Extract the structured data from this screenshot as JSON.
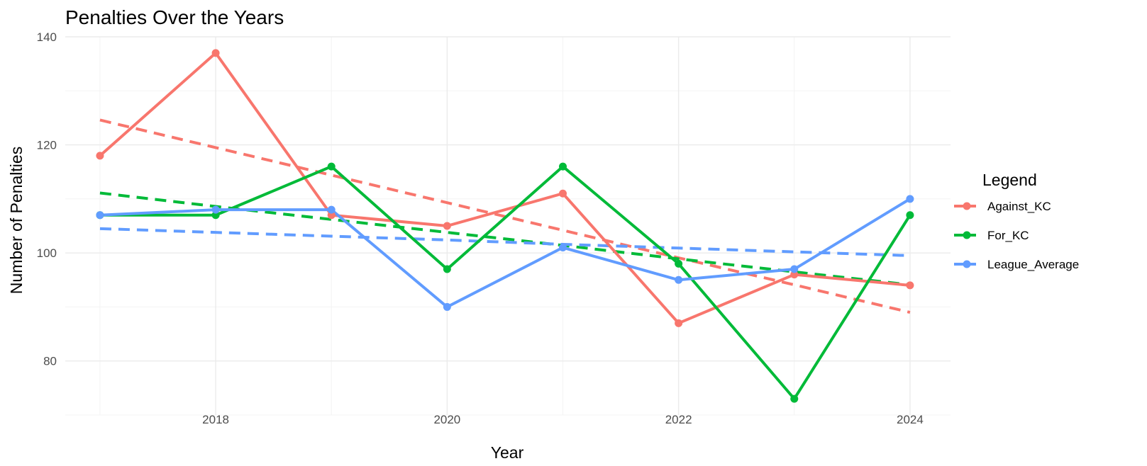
{
  "chart_data": {
    "type": "line",
    "title": "Penalties Over the Years",
    "xlabel": "Year",
    "ylabel": "Number of Penalties",
    "x": [
      2017,
      2018,
      2019,
      2020,
      2021,
      2022,
      2023,
      2024
    ],
    "xlim": [
      2016.7,
      2024.35
    ],
    "ylim": [
      70,
      140
    ],
    "x_ticks": [
      2018,
      2020,
      2022,
      2024
    ],
    "y_ticks": [
      80,
      100,
      120,
      140
    ],
    "grid": true,
    "legend": {
      "title": "Legend",
      "position": "right"
    },
    "series": [
      {
        "name": "Against_KC",
        "color": "#F8766D",
        "values": [
          118,
          137,
          107,
          105,
          111,
          87,
          96,
          94
        ],
        "trend": [
          124.6,
          119.5,
          114.4,
          109.3,
          104.2,
          99.1,
          94.1,
          89.0
        ]
      },
      {
        "name": "For_KC",
        "color": "#00BA38",
        "values": [
          107,
          107,
          116,
          97,
          116,
          98,
          73,
          107
        ],
        "trend": [
          111.1,
          108.6,
          106.2,
          103.8,
          101.4,
          98.9,
          96.5,
          94.1
        ]
      },
      {
        "name": "League_Average",
        "color": "#619CFF",
        "values": [
          107,
          108,
          108,
          90,
          101,
          95,
          97,
          110
        ],
        "trend": [
          104.5,
          103.8,
          103.1,
          102.4,
          101.6,
          100.9,
          100.2,
          99.5
        ]
      }
    ]
  }
}
